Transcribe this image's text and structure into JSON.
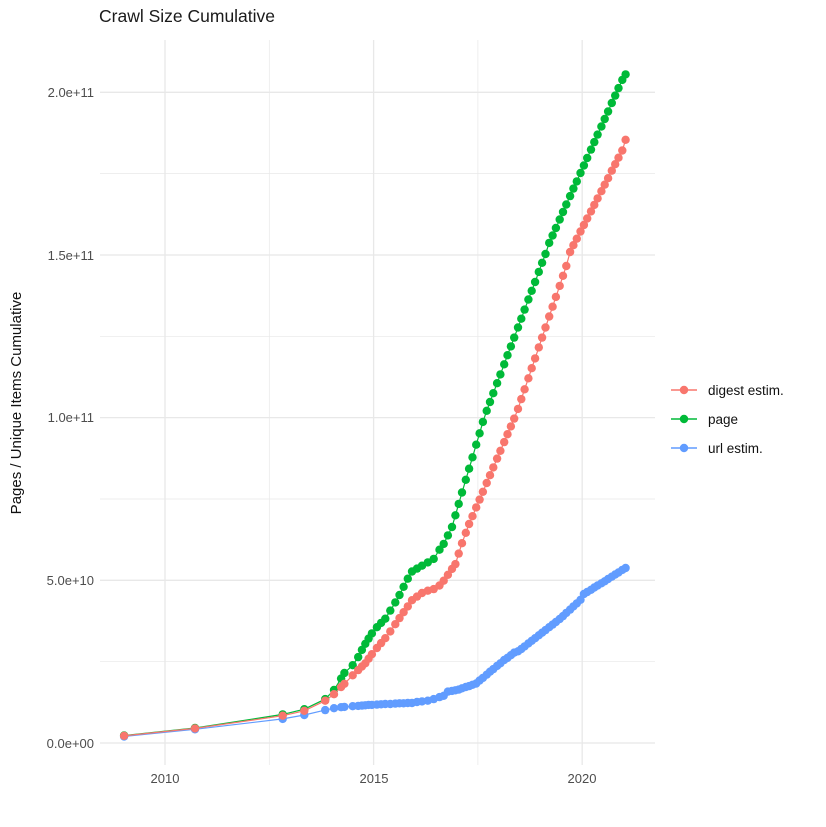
{
  "title": "Crawl Size Cumulative",
  "y_axis_title": "Pages / Unique Items Cumulative",
  "x_ticks": [
    "2010",
    "2015",
    "2020"
  ],
  "y_ticks": [
    "0.0e+00",
    "5.0e+10",
    "1.0e+11",
    "1.5e+11",
    "2.0e+11"
  ],
  "legend": [
    {
      "label": "digest estim.",
      "color": "#F8766D"
    },
    {
      "label": "page",
      "color": "#00BA38"
    },
    {
      "label": "url estim.",
      "color": "#619CFF"
    }
  ],
  "colors": {
    "grid": "#e8e8e8",
    "tick_text": "#4d4d4d",
    "title_text": "#1a1a1a"
  },
  "chart_data": {
    "type": "scatter",
    "title": "Crawl Size Cumulative",
    "xlabel": "",
    "ylabel": "Pages / Unique Items Cumulative",
    "xlim": [
      2008.4,
      2021.75
    ],
    "ylim": [
      0,
      215000000000.0
    ],
    "grid": true,
    "legend_position": "right",
    "x_major_gridlines": [
      2010,
      2015,
      2020
    ],
    "x_minor_gridlines": [
      2012.5,
      2017.5
    ],
    "y_major_gridlines_e9": [
      0,
      50,
      100,
      150,
      200
    ],
    "y_minor_gridlines_e9": [
      25,
      75,
      125,
      175
    ],
    "y_tick_labels": [
      "0.0e+00",
      "5.0e+10",
      "1.0e+11",
      "1.5e+11",
      "2.0e+11"
    ],
    "x_tick_labels": [
      "2010",
      "2015",
      "2020"
    ],
    "value_scale": 1000000000,
    "x": [
      2009.02,
      2010.72,
      2012.82,
      2013.34,
      2013.84,
      2014.05,
      2014.22,
      2014.3,
      2014.5,
      2014.63,
      2014.72,
      2014.8,
      2014.88,
      2014.96,
      2015.08,
      2015.18,
      2015.28,
      2015.4,
      2015.52,
      2015.62,
      2015.72,
      2015.82,
      2015.92,
      2016.04,
      2016.16,
      2016.3,
      2016.44,
      2016.58,
      2016.68,
      2016.78,
      2016.88,
      2016.96,
      2017.04,
      2017.12,
      2017.21,
      2017.29,
      2017.37,
      2017.46,
      2017.54,
      2017.62,
      2017.71,
      2017.79,
      2017.87,
      2017.96,
      2018.04,
      2018.13,
      2018.21,
      2018.29,
      2018.37,
      2018.46,
      2018.54,
      2018.62,
      2018.71,
      2018.79,
      2018.87,
      2018.96,
      2019.04,
      2019.12,
      2019.21,
      2019.29,
      2019.37,
      2019.46,
      2019.54,
      2019.62,
      2019.71,
      2019.79,
      2019.87,
      2019.96,
      2020.04,
      2020.12,
      2020.21,
      2020.29,
      2020.37,
      2020.46,
      2020.54,
      2020.62,
      2020.71,
      2020.79,
      2020.87,
      2020.96,
      2021.04
    ],
    "series": [
      {
        "name": "digest estim.",
        "color": "#F8766D",
        "values_e9": [
          2.2,
          4.5,
          8.4,
          9.9,
          13.0,
          15.0,
          17.2,
          18.2,
          20.8,
          22.4,
          23.5,
          24.5,
          25.9,
          27.3,
          29.2,
          30.7,
          32.2,
          34.3,
          36.5,
          38.4,
          40.2,
          42.0,
          43.9,
          45.0,
          46.1,
          46.8,
          47.3,
          48.4,
          49.9,
          51.7,
          53.5,
          55.0,
          58.2,
          61.4,
          64.6,
          67.3,
          69.7,
          72.4,
          74.8,
          77.2,
          79.9,
          82.3,
          84.7,
          87.4,
          89.8,
          92.5,
          94.9,
          97.3,
          99.7,
          102.7,
          105.7,
          108.7,
          112.1,
          115.2,
          118.2,
          121.6,
          124.6,
          127.7,
          131.1,
          134.1,
          137.1,
          140.5,
          143.6,
          146.6,
          150.9,
          153.0,
          155.0,
          157.2,
          159.2,
          161.2,
          163.4,
          165.4,
          167.4,
          169.6,
          171.6,
          173.6,
          175.9,
          177.9,
          179.9,
          182.1,
          185.4
        ]
      },
      {
        "name": "page",
        "color": "#00BA38",
        "values_e9": [
          2.3,
          4.6,
          8.8,
          10.4,
          13.5,
          16.3,
          19.8,
          21.5,
          23.9,
          26.4,
          28.6,
          30.5,
          32.1,
          33.7,
          35.6,
          36.9,
          38.2,
          40.7,
          43.2,
          45.5,
          48.0,
          50.5,
          52.7,
          53.6,
          54.5,
          55.5,
          56.6,
          59.4,
          61.2,
          63.8,
          66.4,
          70.0,
          73.5,
          77.0,
          80.9,
          84.3,
          87.8,
          91.7,
          95.2,
          98.7,
          102.1,
          104.8,
          107.5,
          110.6,
          113.3,
          116.4,
          119.2,
          121.9,
          124.6,
          127.7,
          130.4,
          133.2,
          136.3,
          139.0,
          141.7,
          144.8,
          147.6,
          150.3,
          153.7,
          156.0,
          158.3,
          160.9,
          163.2,
          165.5,
          168.1,
          170.4,
          172.6,
          175.2,
          177.5,
          179.8,
          182.4,
          184.7,
          187.0,
          189.5,
          191.8,
          194.1,
          196.7,
          199.0,
          201.3,
          203.8,
          205.5
        ]
      },
      {
        "name": "url estim.",
        "color": "#619CFF",
        "values_e9": [
          2.0,
          4.2,
          7.4,
          8.6,
          10.1,
          10.7,
          11.0,
          11.1,
          11.3,
          11.4,
          11.5,
          11.6,
          11.7,
          11.7,
          11.8,
          11.9,
          12.0,
          12.0,
          12.1,
          12.2,
          12.2,
          12.3,
          12.3,
          12.6,
          12.8,
          13.0,
          13.5,
          14.1,
          14.5,
          15.8,
          16.0,
          16.2,
          16.4,
          16.8,
          17.2,
          17.5,
          17.9,
          18.3,
          19.2,
          20.0,
          21.0,
          21.9,
          22.7,
          23.7,
          24.5,
          25.5,
          26.2,
          27.0,
          27.8,
          28.2,
          28.9,
          29.7,
          30.6,
          31.4,
          32.2,
          33.1,
          33.9,
          34.7,
          35.6,
          36.4,
          37.2,
          38.1,
          39.0,
          40.0,
          41.0,
          42.0,
          42.9,
          44.0,
          45.8,
          46.4,
          47.1,
          47.8,
          48.4,
          49.1,
          49.7,
          50.4,
          51.1,
          51.8,
          52.4,
          53.2,
          53.8
        ]
      }
    ]
  }
}
